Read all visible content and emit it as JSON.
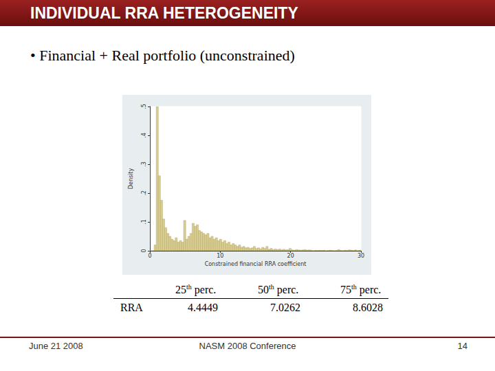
{
  "slide": {
    "title": "INDIVIDUAL RRA HETEROGENEITY",
    "bullet": "• Financial + Real portfolio (unconstrained)",
    "table": {
      "header": [
        "25th perc.",
        "50th perc.",
        "75th perc."
      ],
      "rows": [
        {
          "label": "RRA",
          "values": [
            4.4449,
            7.0262,
            8.6028
          ]
        }
      ]
    },
    "footer": {
      "date": "June 21 2008",
      "conference": "NASM 2008 Conference",
      "page": "14"
    }
  },
  "chart_data": {
    "type": "histogram",
    "xlabel": "Constrained financial RRA coefficient",
    "ylabel": "Density",
    "color": "#d9cd8f",
    "bins": [
      0,
      0.3,
      0.6,
      0.9,
      1.2,
      1.5,
      1.8,
      2.1,
      2.4,
      2.7,
      3,
      3.3,
      3.6,
      3.9,
      4.2,
      4.5,
      4.8,
      5.1,
      5.4,
      5.7,
      6,
      6.3,
      6.6,
      6.9,
      7.2,
      7.5,
      7.8,
      8.1,
      8.4,
      8.7,
      9,
      9.3,
      9.6,
      9.9,
      10.2,
      10.5,
      10.8,
      11.1,
      11.4,
      11.7,
      12,
      12.3,
      12.6,
      12.9,
      13.2,
      13.5,
      13.8,
      14.1,
      14.4,
      14.7,
      15,
      15.3,
      15.6,
      15.9,
      16.2,
      16.5,
      16.8,
      17.1,
      17.4,
      17.7,
      18,
      18.3,
      18.6,
      18.9,
      19.2,
      19.5,
      19.8,
      20.1,
      20.4,
      20.7,
      21,
      21.3,
      21.6,
      21.9,
      22.2,
      22.5,
      22.8,
      23.1,
      23.4,
      23.7,
      24,
      24.3,
      24.6,
      24.9,
      25.2,
      25.5,
      25.8,
      26.1,
      26.4,
      26.7,
      27,
      27.3,
      27.6,
      27.9,
      28.2,
      28.5,
      28.8,
      29.1,
      29.4,
      29.7,
      30
    ],
    "counts": [
      0,
      0,
      0.02,
      0.5,
      0.26,
      0.175,
      0.11,
      0.08,
      0.06,
      0.05,
      0.04,
      0.035,
      0.045,
      0.03,
      0.035,
      0.03,
      0.105,
      0.04,
      0.05,
      0.06,
      0.095,
      0.085,
      0.09,
      0.07,
      0.065,
      0.06,
      0.055,
      0.06,
      0.045,
      0.05,
      0.04,
      0.045,
      0.035,
      0.04,
      0.03,
      0.035,
      0.025,
      0.03,
      0.02,
      0.025,
      0.02,
      0.015,
      0.02,
      0.012,
      0.015,
      0.01,
      0.012,
      0.008,
      0.01,
      0.015,
      0.008,
      0.01,
      0.006,
      0.012,
      0.008,
      0.015,
      0.005,
      0.008,
      0.004,
      0.006,
      0.004,
      0.006,
      0.003,
      0.005,
      0.003,
      0.004,
      0.008,
      0.003,
      0.002,
      0.004,
      0.003,
      0.002,
      0.003,
      0.004,
      0.002,
      0.003,
      0.002,
      0,
      0.002,
      0.001,
      0.002,
      0.001,
      0.002,
      0,
      0.001,
      0.002,
      0.001,
      0,
      0.001,
      0.004,
      0.001,
      0,
      0.002,
      0.001,
      0.003,
      0.002,
      0.001,
      0.003,
      0,
      0.002
    ],
    "xlim": [
      0,
      30
    ],
    "xticks": [
      0,
      10,
      20,
      30
    ],
    "ylim": [
      0,
      0.5
    ],
    "yticks": [
      0,
      {
        "value": 0.1,
        "label": ".1"
      },
      {
        "value": 0.2,
        "label": ".2"
      },
      {
        "value": 0.3,
        "label": ".3"
      },
      {
        "value": 0.4,
        "label": ".4"
      },
      {
        "value": 0.5,
        "label": ".5"
      }
    ],
    "grid": false
  }
}
